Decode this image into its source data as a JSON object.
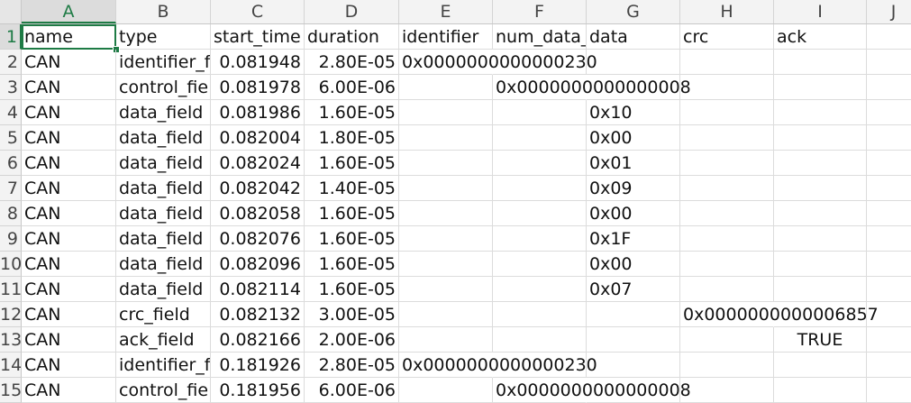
{
  "columns": [
    "A",
    "B",
    "C",
    "D",
    "E",
    "F",
    "G",
    "H",
    "I",
    "J"
  ],
  "selected_column": "A",
  "selected_row": "1",
  "row_numbers": [
    "1",
    "2",
    "3",
    "4",
    "5",
    "6",
    "7",
    "8",
    "9",
    "10",
    "11",
    "12",
    "13",
    "14",
    "15"
  ],
  "header_row": {
    "name": "name",
    "type": "type",
    "start_time": "start_time",
    "duration": "duration",
    "identifier": "identifier",
    "num_data": "num_data_",
    "data": "data",
    "crc": "crc",
    "ack": "ack"
  },
  "rows": [
    {
      "name": "CAN",
      "type": "identifier_fi",
      "start_time": "0.081948",
      "duration": "2.80E-05",
      "identifier": "0x0000000000000230",
      "num_data": "",
      "data": "",
      "crc": "",
      "ack": ""
    },
    {
      "name": "CAN",
      "type": "control_fie",
      "start_time": "0.081978",
      "duration": "6.00E-06",
      "identifier": "",
      "num_data": "0x0000000000000008",
      "data": "",
      "crc": "",
      "ack": ""
    },
    {
      "name": "CAN",
      "type": "data_field",
      "start_time": "0.081986",
      "duration": "1.60E-05",
      "identifier": "",
      "num_data": "",
      "data": "0x10",
      "crc": "",
      "ack": ""
    },
    {
      "name": "CAN",
      "type": "data_field",
      "start_time": "0.082004",
      "duration": "1.80E-05",
      "identifier": "",
      "num_data": "",
      "data": "0x00",
      "crc": "",
      "ack": ""
    },
    {
      "name": "CAN",
      "type": "data_field",
      "start_time": "0.082024",
      "duration": "1.60E-05",
      "identifier": "",
      "num_data": "",
      "data": "0x01",
      "crc": "",
      "ack": ""
    },
    {
      "name": "CAN",
      "type": "data_field",
      "start_time": "0.082042",
      "duration": "1.40E-05",
      "identifier": "",
      "num_data": "",
      "data": "0x09",
      "crc": "",
      "ack": ""
    },
    {
      "name": "CAN",
      "type": "data_field",
      "start_time": "0.082058",
      "duration": "1.60E-05",
      "identifier": "",
      "num_data": "",
      "data": "0x00",
      "crc": "",
      "ack": ""
    },
    {
      "name": "CAN",
      "type": "data_field",
      "start_time": "0.082076",
      "duration": "1.60E-05",
      "identifier": "",
      "num_data": "",
      "data": "0x1F",
      "crc": "",
      "ack": ""
    },
    {
      "name": "CAN",
      "type": "data_field",
      "start_time": "0.082096",
      "duration": "1.60E-05",
      "identifier": "",
      "num_data": "",
      "data": "0x00",
      "crc": "",
      "ack": ""
    },
    {
      "name": "CAN",
      "type": "data_field",
      "start_time": "0.082114",
      "duration": "1.60E-05",
      "identifier": "",
      "num_data": "",
      "data": "0x07",
      "crc": "",
      "ack": ""
    },
    {
      "name": "CAN",
      "type": "crc_field",
      "start_time": "0.082132",
      "duration": "3.00E-05",
      "identifier": "",
      "num_data": "",
      "data": "",
      "crc": "0x0000000000006857",
      "ack": ""
    },
    {
      "name": "CAN",
      "type": "ack_field",
      "start_time": "0.082166",
      "duration": "2.00E-06",
      "identifier": "",
      "num_data": "",
      "data": "",
      "crc": "",
      "ack": "TRUE"
    },
    {
      "name": "CAN",
      "type": "identifier_fi",
      "start_time": "0.181926",
      "duration": "2.80E-05",
      "identifier": "0x0000000000000230",
      "num_data": "",
      "data": "",
      "crc": "",
      "ack": ""
    },
    {
      "name": "CAN",
      "type": "control_fie",
      "start_time": "0.181956",
      "duration": "6.00E-06",
      "identifier": "",
      "num_data": "0x0000000000000008",
      "data": "",
      "crc": "",
      "ack": ""
    }
  ],
  "colors": {
    "selection": "#1e7b45",
    "header_bg": "#f3f3f3",
    "gridline": "#dcdcdc"
  }
}
